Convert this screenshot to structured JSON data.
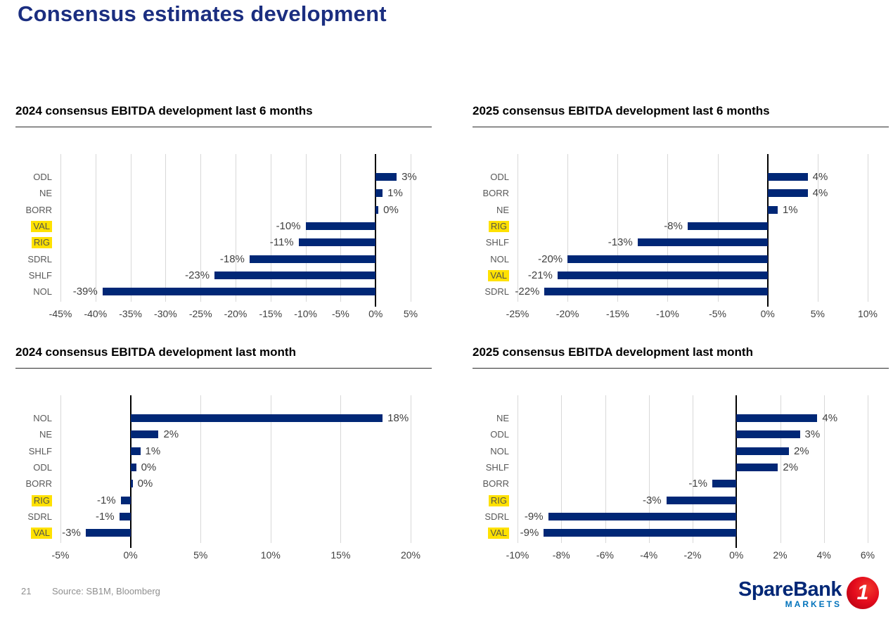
{
  "slide": {
    "title": "Consensus estimates development",
    "page_number": "21",
    "source": "Source: SB1M, Bloomberg"
  },
  "logo": {
    "brand": "SpareBank",
    "badge": "1",
    "sub": "MARKETS"
  },
  "colors": {
    "bar": "#002776",
    "highlight": "#FFE100",
    "slide_title": "#1B2E80",
    "gridline": "#D8D8D8",
    "zero_axis": "#000000",
    "category_label": "#595959",
    "value_label": "#404040",
    "footer_text": "#8F8F8F",
    "logo_navy": "#002776",
    "logo_markets_blue": "#0072BB",
    "logo_red": "#E30B1C"
  },
  "chart_data": [
    {
      "type": "bar",
      "orientation": "horizontal",
      "title": "2024 consensus EBITDA development last 6 months",
      "categories": [
        "ODL",
        "NE",
        "BORR",
        "VAL",
        "RIG",
        "SDRL",
        "SHLF",
        "NOL"
      ],
      "values": [
        3,
        1,
        0,
        -10,
        -11,
        -18,
        -23,
        -39
      ],
      "labels": [
        "3%",
        "1%",
        "0%",
        "-10%",
        "-11%",
        "-18%",
        "-23%",
        "-39%"
      ],
      "bar_lengths": [
        3,
        1,
        0.4,
        -10,
        -11,
        -18,
        -23,
        -39
      ],
      "highlighted": [
        "VAL",
        "RIG"
      ],
      "xlim": [
        -45,
        5
      ],
      "ticks": [
        -45,
        -40,
        -35,
        -30,
        -25,
        -20,
        -15,
        -10,
        -5,
        0,
        5
      ],
      "tick_labels": [
        "-45%",
        "-40%",
        "-35%",
        "-30%",
        "-25%",
        "-20%",
        "-15%",
        "-10%",
        "-5%",
        "0%",
        "5%"
      ],
      "grid": true,
      "legend": "none",
      "xlabel": "",
      "ylabel": ""
    },
    {
      "type": "bar",
      "orientation": "horizontal",
      "title": "2025 consensus EBITDA development last 6 months",
      "categories": [
        "ODL",
        "BORR",
        "NE",
        "RIG",
        "SHLF",
        "NOL",
        "VAL",
        "SDRL"
      ],
      "values": [
        4,
        4,
        1,
        -8,
        -13,
        -20,
        -21,
        -22
      ],
      "labels": [
        "4%",
        "4%",
        "1%",
        "-8%",
        "-13%",
        "-20%",
        "-21%",
        "-22%"
      ],
      "bar_lengths": [
        4,
        4,
        1,
        -8,
        -13,
        -20,
        -21,
        -22.3
      ],
      "highlighted": [
        "RIG",
        "VAL"
      ],
      "xlim": [
        -25,
        10
      ],
      "ticks": [
        -25,
        -20,
        -15,
        -10,
        -5,
        0,
        5,
        10
      ],
      "tick_labels": [
        "-25%",
        "-20%",
        "-15%",
        "-10%",
        "-5%",
        "0%",
        "5%",
        "10%"
      ],
      "grid": true,
      "legend": "none",
      "xlabel": "",
      "ylabel": ""
    },
    {
      "type": "bar",
      "orientation": "horizontal",
      "title": "2024 consensus EBITDA development last month",
      "categories": [
        "NOL",
        "NE",
        "SHLF",
        "ODL",
        "BORR",
        "RIG",
        "SDRL",
        "VAL"
      ],
      "values": [
        18,
        2,
        1,
        0,
        0,
        -1,
        -1,
        -3
      ],
      "labels": [
        "18%",
        "2%",
        "1%",
        "0%",
        "0%",
        "-1%",
        "-1%",
        "-3%"
      ],
      "bar_lengths": [
        18,
        2,
        0.7,
        0.4,
        0.15,
        -0.7,
        -0.8,
        -3.2
      ],
      "highlighted": [
        "RIG",
        "VAL"
      ],
      "xlim": [
        -5,
        20
      ],
      "ticks": [
        -5,
        0,
        5,
        10,
        15,
        20
      ],
      "tick_labels": [
        "-5%",
        "0%",
        "5%",
        "10%",
        "15%",
        "20%"
      ],
      "grid": true,
      "legend": "none",
      "xlabel": "",
      "ylabel": ""
    },
    {
      "type": "bar",
      "orientation": "horizontal",
      "title": "2025 consensus EBITDA development last month",
      "categories": [
        "NE",
        "ODL",
        "NOL",
        "SHLF",
        "BORR",
        "RIG",
        "SDRL",
        "VAL"
      ],
      "values": [
        4,
        3,
        2,
        2,
        -1,
        -3,
        -9,
        -9
      ],
      "labels": [
        "4%",
        "3%",
        "2%",
        "2%",
        "-1%",
        "-3%",
        "-9%",
        "-9%"
      ],
      "bar_lengths": [
        3.7,
        2.9,
        2.4,
        1.9,
        -1.1,
        -3.2,
        -8.6,
        -8.8
      ],
      "highlighted": [
        "RIG",
        "VAL"
      ],
      "xlim": [
        -10,
        6
      ],
      "ticks": [
        -10,
        -8,
        -6,
        -4,
        -2,
        0,
        2,
        4,
        6
      ],
      "tick_labels": [
        "-10%",
        "-8%",
        "-6%",
        "-4%",
        "-2%",
        "0%",
        "2%",
        "4%",
        "6%"
      ],
      "grid": true,
      "legend": "none",
      "xlabel": "",
      "ylabel": ""
    }
  ]
}
